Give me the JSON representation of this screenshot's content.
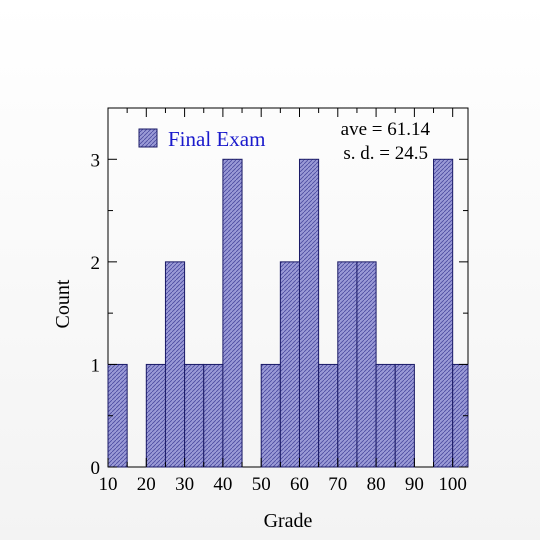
{
  "chart_data": {
    "type": "bar",
    "title": "",
    "xlabel": "Grade",
    "ylabel": "Count",
    "xlim": [
      10,
      104
    ],
    "ylim": [
      0,
      3.5
    ],
    "bin_width": 5,
    "xticks": [
      10,
      20,
      30,
      40,
      50,
      60,
      70,
      80,
      90,
      100
    ],
    "yticks": [
      0,
      1,
      2,
      3
    ],
    "series": [
      {
        "name": "Final Exam",
        "bins": [
          {
            "x0": 10,
            "x1": 15,
            "count": 1
          },
          {
            "x0": 20,
            "x1": 25,
            "count": 1
          },
          {
            "x0": 25,
            "x1": 30,
            "count": 2
          },
          {
            "x0": 30,
            "x1": 35,
            "count": 1
          },
          {
            "x0": 35,
            "x1": 40,
            "count": 1
          },
          {
            "x0": 40,
            "x1": 45,
            "count": 3
          },
          {
            "x0": 50,
            "x1": 55,
            "count": 1
          },
          {
            "x0": 55,
            "x1": 60,
            "count": 2
          },
          {
            "x0": 60,
            "x1": 65,
            "count": 3
          },
          {
            "x0": 65,
            "x1": 70,
            "count": 1
          },
          {
            "x0": 70,
            "x1": 75,
            "count": 2
          },
          {
            "x0": 75,
            "x1": 80,
            "count": 2
          },
          {
            "x0": 80,
            "x1": 85,
            "count": 1
          },
          {
            "x0": 85,
            "x1": 90,
            "count": 1
          },
          {
            "x0": 95,
            "x1": 100,
            "count": 3
          },
          {
            "x0": 100,
            "x1": 105,
            "count": 1
          }
        ]
      }
    ],
    "annotations": [
      "ave = 61.14",
      "s. d. = 24.5"
    ],
    "legend_placement": "top-left",
    "grid": false,
    "bar_color": "#9a9ad6",
    "bar_edge_color": "#1a1a66",
    "legend_text_color": "#1a1acc"
  }
}
